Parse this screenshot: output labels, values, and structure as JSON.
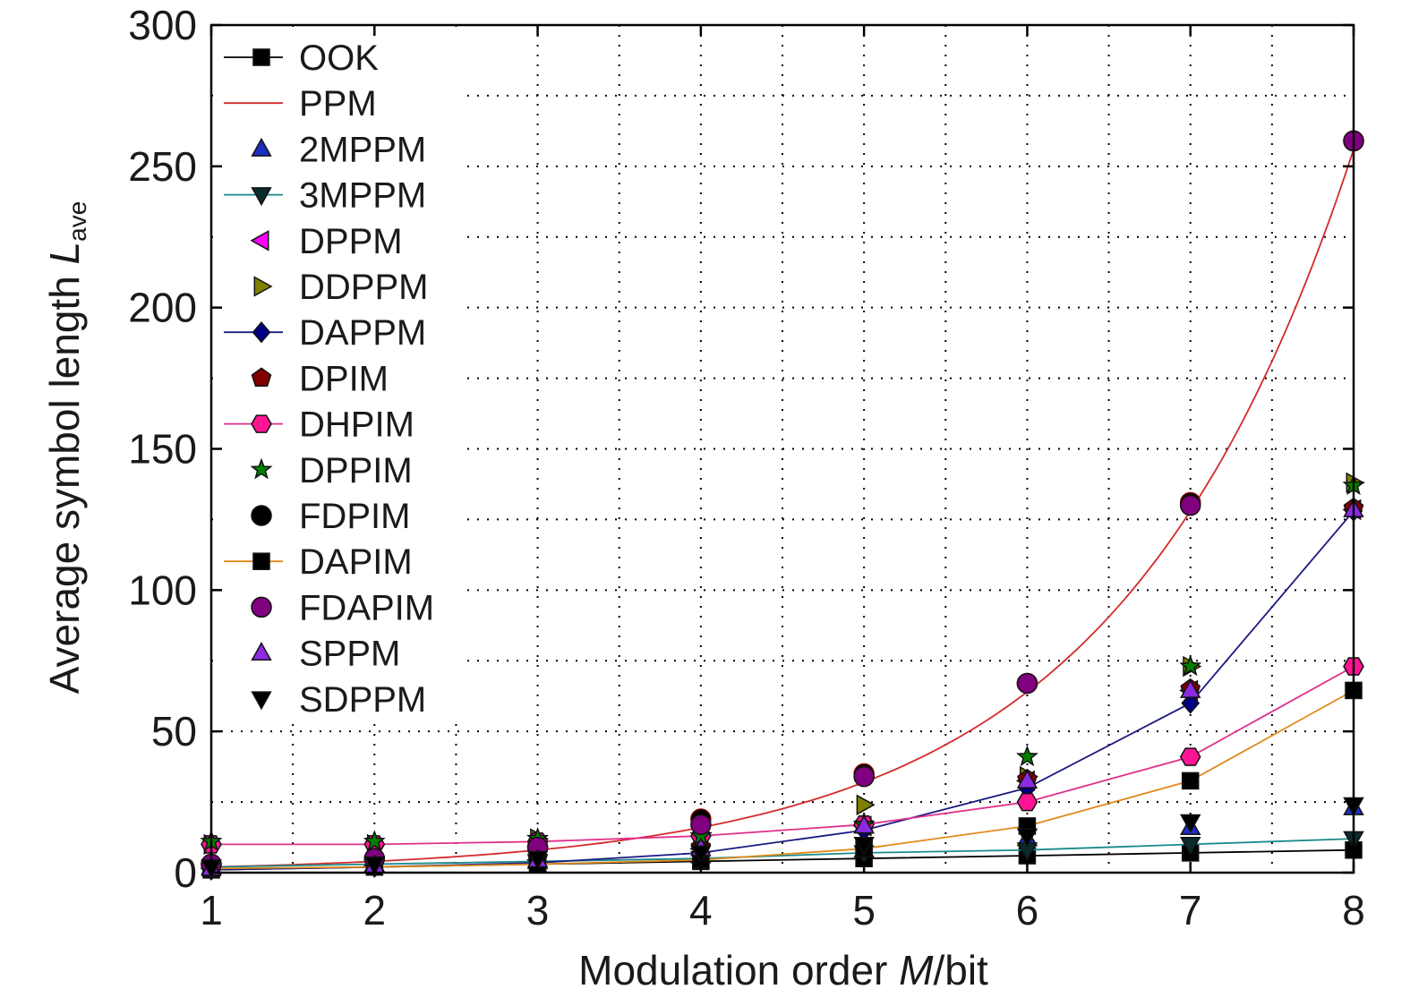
{
  "chart_data": {
    "type": "line",
    "xlabel": {
      "prefix": "Modulation order ",
      "italic": "M",
      "suffix": "/bit"
    },
    "ylabel": {
      "prefix": "Average symbol length ",
      "italic": "L",
      "subscript": "ave"
    },
    "xlim": [
      1,
      8
    ],
    "ylim": [
      0,
      300
    ],
    "x_ticks": [
      1,
      2,
      3,
      4,
      5,
      6,
      7,
      8
    ],
    "y_ticks": [
      0,
      50,
      100,
      150,
      200,
      250,
      300
    ],
    "grid": true,
    "legend_position": "top-left",
    "x": [
      1,
      2,
      3,
      4,
      5,
      6,
      7,
      8
    ],
    "series": [
      {
        "name": "OOK",
        "marker": "square",
        "line": true,
        "color": "#000000",
        "fill": "#000000",
        "values": [
          1,
          2,
          3,
          4,
          5,
          6,
          7,
          8
        ]
      },
      {
        "name": "PPM",
        "marker": "none",
        "line": true,
        "color": "#d42a2a",
        "fill": "#d42a2a",
        "values": [
          2,
          4,
          8,
          16,
          32,
          64,
          128,
          256
        ]
      },
      {
        "name": "2MPPM",
        "marker": "triangle-up",
        "line": false,
        "color": "#000000",
        "fill": "#1a2fbf",
        "values": [
          2,
          3,
          4,
          6,
          8,
          12,
          16,
          23
        ]
      },
      {
        "name": "3MPPM",
        "marker": "triangle-down",
        "line": true,
        "color": "#1a8a8a",
        "fill": "#0b2b2b",
        "values": [
          2,
          3,
          4,
          5,
          7,
          8,
          10,
          12
        ]
      },
      {
        "name": "DPPM",
        "marker": "triangle-left",
        "line": false,
        "color": "#ff00ff",
        "fill": "#ff00ff",
        "values": [
          1.5,
          2.5,
          4.5,
          8.5,
          16.5,
          32.5,
          64.5,
          128.5
        ]
      },
      {
        "name": "DDPPM",
        "marker": "triangle-right",
        "line": false,
        "color": "#808000",
        "fill": "#808000",
        "values": [
          10,
          10,
          12,
          14,
          24,
          34,
          73,
          138
        ]
      },
      {
        "name": "DAPPM",
        "marker": "diamond",
        "line": true,
        "color": "#1a1a80",
        "fill": "#000080",
        "values": [
          1,
          2,
          3.5,
          7,
          15,
          30,
          60,
          128
        ]
      },
      {
        "name": "DPIM",
        "marker": "pentagon",
        "line": false,
        "color": "#800000",
        "fill": "#800000",
        "values": [
          2,
          3,
          5,
          9,
          17,
          33,
          65,
          129
        ]
      },
      {
        "name": "DHPIM",
        "marker": "hexagon",
        "line": true,
        "color": "#e0308a",
        "fill": "#ff1493",
        "values": [
          10,
          10,
          11,
          13,
          17,
          25,
          41,
          73
        ]
      },
      {
        "name": "DPPIM",
        "marker": "star",
        "line": false,
        "color": "#007a00",
        "fill": "#008000",
        "values": [
          11,
          11,
          12,
          13,
          17,
          41,
          73,
          137
        ]
      },
      {
        "name": "FDPIM",
        "marker": "circle",
        "line": false,
        "color": "#000000",
        "fill": "#000000",
        "values": [
          3,
          5,
          9,
          19,
          35,
          67,
          131,
          259
        ]
      },
      {
        "name": "DAPIM",
        "marker": "square",
        "line": true,
        "color": "#e08a1a",
        "fill": "#000000",
        "values": [
          1.5,
          2,
          3,
          4.5,
          8.5,
          16.5,
          32.5,
          64.5
        ]
      },
      {
        "name": "FDAPIM",
        "marker": "circle",
        "line": false,
        "color": "#800080",
        "fill": "#800080",
        "values": [
          3,
          5,
          9,
          17,
          34,
          67,
          130,
          259
        ]
      },
      {
        "name": "SPPM",
        "marker": "triangle-up",
        "line": false,
        "color": "#8a2be2",
        "fill": "#8a2be2",
        "values": [
          1.5,
          2.5,
          4.5,
          8.5,
          16.5,
          32.5,
          64.5,
          128.5
        ]
      },
      {
        "name": "SDPPM",
        "marker": "triangle-down",
        "line": false,
        "color": "#000000",
        "fill": "#000000",
        "values": [
          2,
          3,
          5,
          7,
          10,
          13,
          18,
          24
        ]
      }
    ]
  }
}
